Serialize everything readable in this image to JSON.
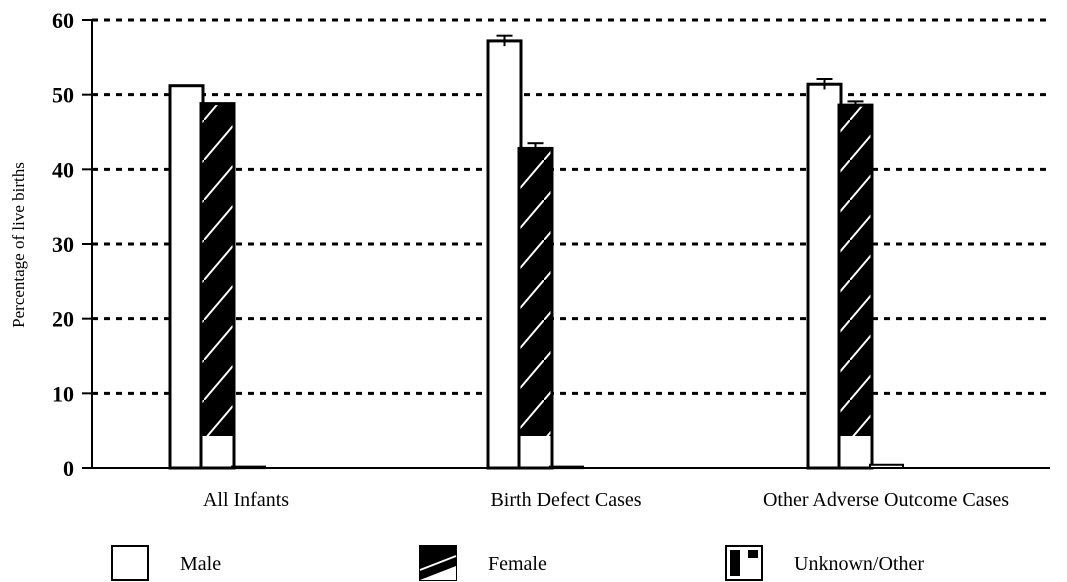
{
  "chart_data": {
    "type": "bar",
    "title": "",
    "xlabel": "",
    "ylabel": "Percentage of live births",
    "ylim": [
      0,
      60
    ],
    "yticks": [
      0,
      10,
      20,
      30,
      40,
      50,
      60
    ],
    "grid": true,
    "legend_position": "bottom",
    "categories": [
      "All Infants",
      "Birth Defect Cases",
      "Other Adverse Outcome Cases"
    ],
    "series": [
      {
        "name": "Male",
        "values": [
          51.2,
          57.2,
          51.4
        ],
        "errors": [
          0,
          0.7,
          0.7
        ],
        "pattern": "white"
      },
      {
        "name": "Female",
        "values": [
          48.8,
          42.8,
          48.6
        ],
        "errors": [
          0,
          0.7,
          0.5
        ],
        "pattern": "hatched"
      },
      {
        "name": "Unknown/Other",
        "values": [
          0.05,
          0.05,
          0.3
        ],
        "errors": [
          0,
          0,
          0
        ],
        "pattern": "unknown"
      }
    ]
  }
}
